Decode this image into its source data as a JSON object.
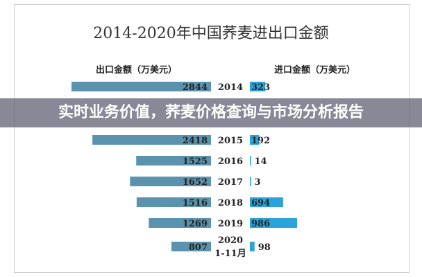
{
  "chart_data": {
    "type": "bar",
    "title": "2014-2020年中国荞麦进出口金额",
    "categories": [
      "2014",
      "2015",
      "2016",
      "2017",
      "2018",
      "2019",
      "2020\n1-11月"
    ],
    "series": [
      {
        "name": "出口金额（万美元）",
        "values": [
          2844,
          2418,
          1525,
          1652,
          1516,
          1269,
          807
        ],
        "color": "#5b93ae"
      },
      {
        "name": "进口金额（万美元）",
        "values": [
          323,
          192,
          14,
          3,
          694,
          986,
          98
        ],
        "color": "#29a3d9"
      }
    ],
    "orientation": "horizontal-butterfly",
    "grid": false
  },
  "overlay": {
    "headline": "实时业务价值，荞麦价格查询与市场分析报告"
  }
}
